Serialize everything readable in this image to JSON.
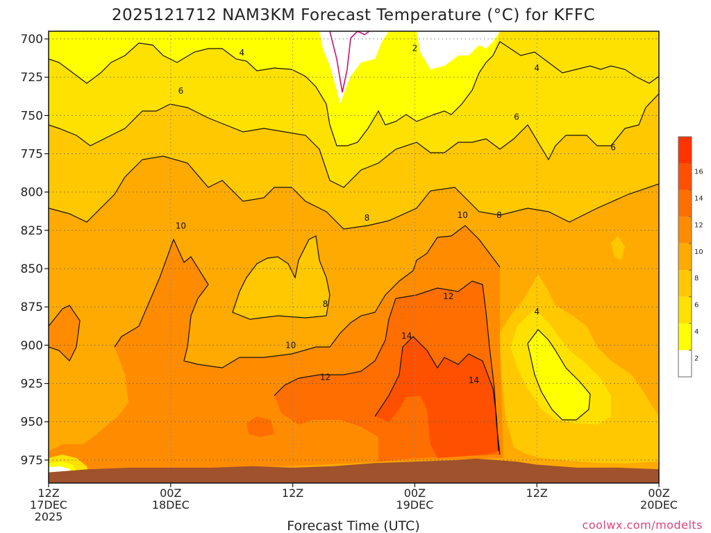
{
  "chart_data": {
    "type": "heatmap",
    "title": "2025121712 NAM3KM Forecast Temperature (°C) for KFFC",
    "xlabel": "Forecast Time (UTC)",
    "ylabel": "",
    "y_axis": {
      "unit": "hPa",
      "ticks": [
        700,
        725,
        750,
        775,
        800,
        825,
        850,
        875,
        900,
        925,
        950,
        975
      ],
      "inverted": true,
      "range": [
        695,
        990
      ]
    },
    "x_axis": {
      "range_hours": [
        0,
        60
      ],
      "ticks": [
        {
          "hour": 0,
          "line1": "12Z",
          "line2": "17DEC",
          "line3": "2025"
        },
        {
          "hour": 12,
          "line1": "00Z",
          "line2": "18DEC",
          "line3": ""
        },
        {
          "hour": 24,
          "line1": "12Z",
          "line2": "",
          "line3": ""
        },
        {
          "hour": 36,
          "line1": "00Z",
          "line2": "19DEC",
          "line3": ""
        },
        {
          "hour": 48,
          "line1": "12Z",
          "line2": "",
          "line3": ""
        },
        {
          "hour": 60,
          "line1": "00Z",
          "line2": "20DEC",
          "line3": ""
        }
      ]
    },
    "grid": true,
    "levels": [
      2,
      4,
      6,
      8,
      10,
      12,
      14,
      16
    ],
    "colorbar": {
      "labels": [
        "2",
        "4",
        "6",
        "8",
        "10",
        "12",
        "14",
        "16"
      ],
      "colors": [
        "#ffffff",
        "#ffff00",
        "#ffe100",
        "#ffc800",
        "#ffaa00",
        "#ff8c00",
        "#ff6e00",
        "#ff5000",
        "#ff3200"
      ]
    },
    "contour_labels": [
      {
        "text": "2",
        "hour": 36.0,
        "p": 706
      },
      {
        "text": "4",
        "hour": 19.0,
        "p": 709
      },
      {
        "text": "4",
        "hour": 48.0,
        "p": 719
      },
      {
        "text": "4",
        "hour": 48.0,
        "p": 878
      },
      {
        "text": "6",
        "hour": 13.0,
        "p": 734
      },
      {
        "text": "6",
        "hour": 46.0,
        "p": 751
      },
      {
        "text": "6",
        "hour": 55.5,
        "p": 771
      },
      {
        "text": "8",
        "hour": 31.3,
        "p": 817
      },
      {
        "text": "8",
        "hour": 44.3,
        "p": 815
      },
      {
        "text": "8",
        "hour": 27.2,
        "p": 873
      },
      {
        "text": "10",
        "hour": 13.0,
        "p": 822
      },
      {
        "text": "10",
        "hour": 40.7,
        "p": 815
      },
      {
        "text": "10",
        "hour": 23.8,
        "p": 900
      },
      {
        "text": "12",
        "hour": 39.3,
        "p": 868
      },
      {
        "text": "12",
        "hour": 27.2,
        "p": 921
      },
      {
        "text": "14",
        "hour": 35.2,
        "p": 894
      },
      {
        "text": "14",
        "hour": 41.8,
        "p": 923
      }
    ],
    "terrain": {
      "color": "#a0522d",
      "note": "surface pressure",
      "hours": [
        0,
        4,
        8,
        12,
        16,
        20,
        24,
        28,
        32,
        36,
        40,
        42,
        44,
        46,
        48,
        52,
        56,
        60
      ],
      "pressure": [
        983,
        981,
        980,
        980,
        980,
        979,
        980,
        979,
        977,
        976,
        975,
        974,
        975,
        976,
        978,
        980,
        980,
        981
      ]
    }
  },
  "credit": "coolwx.com/modelts"
}
